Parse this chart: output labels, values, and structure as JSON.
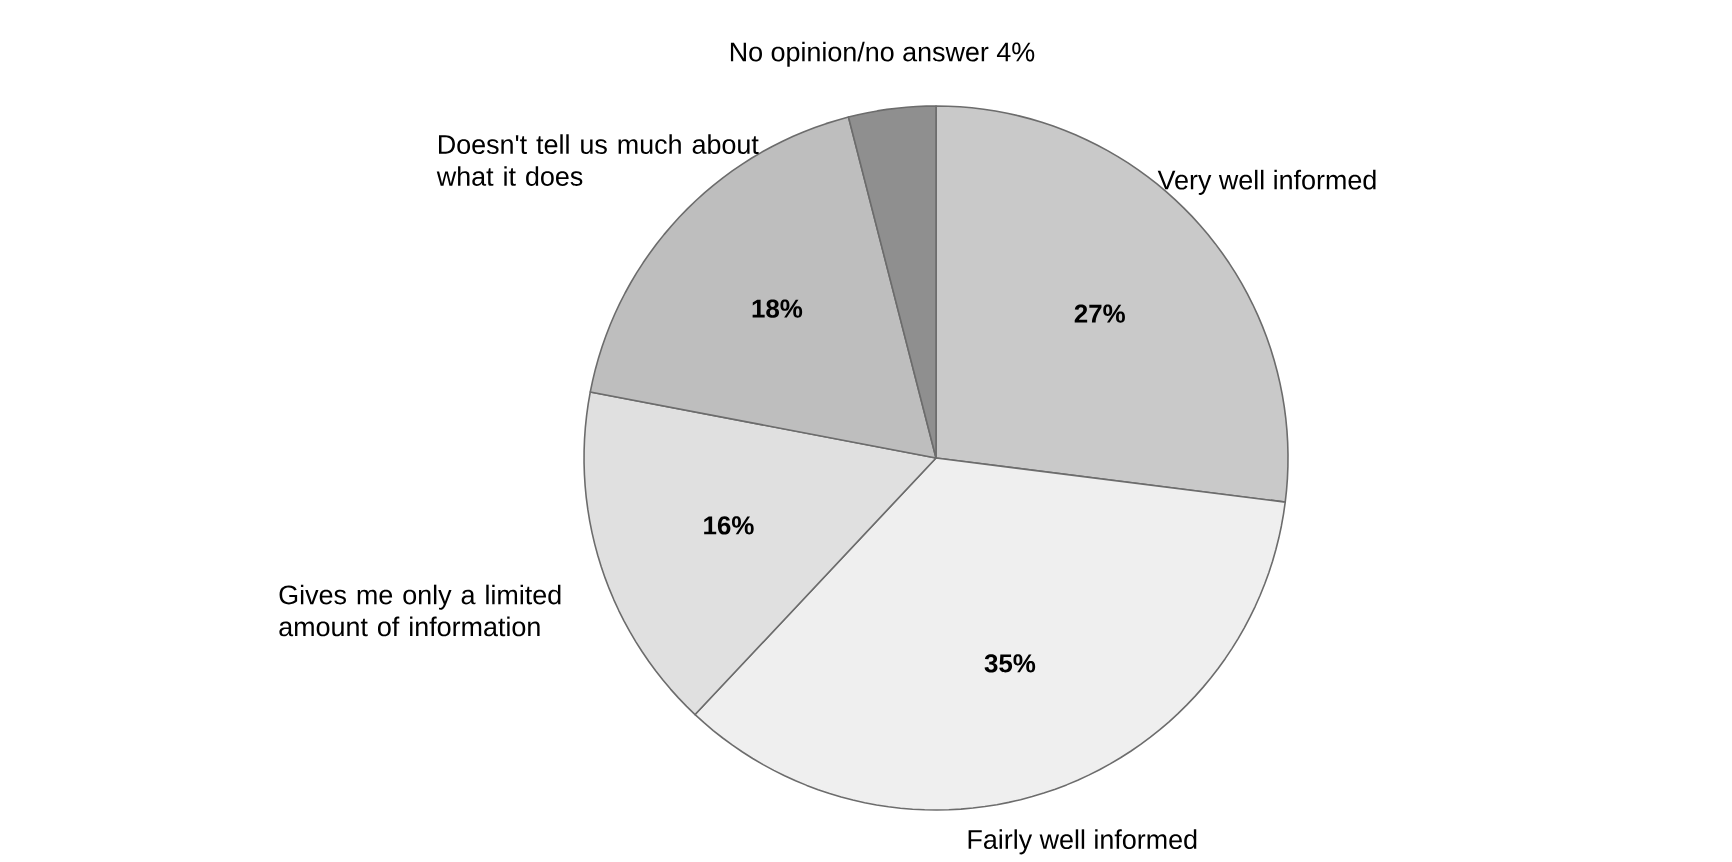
{
  "chart_data": {
    "type": "pie",
    "categories": [
      "Very well informed",
      "Fairly well informed",
      "Gives me only a limited amount of information",
      "Doesn't tell us much about what it does",
      "No opinion/no answer 4%"
    ],
    "values": [
      27,
      35,
      16,
      18,
      4
    ],
    "colors": [
      "#c9c9c9",
      "#efefef",
      "#e0e0e0",
      "#bebebe",
      "#8f8f8f"
    ],
    "value_labels": [
      "27%",
      "35%",
      "16%",
      "18%",
      null
    ]
  }
}
